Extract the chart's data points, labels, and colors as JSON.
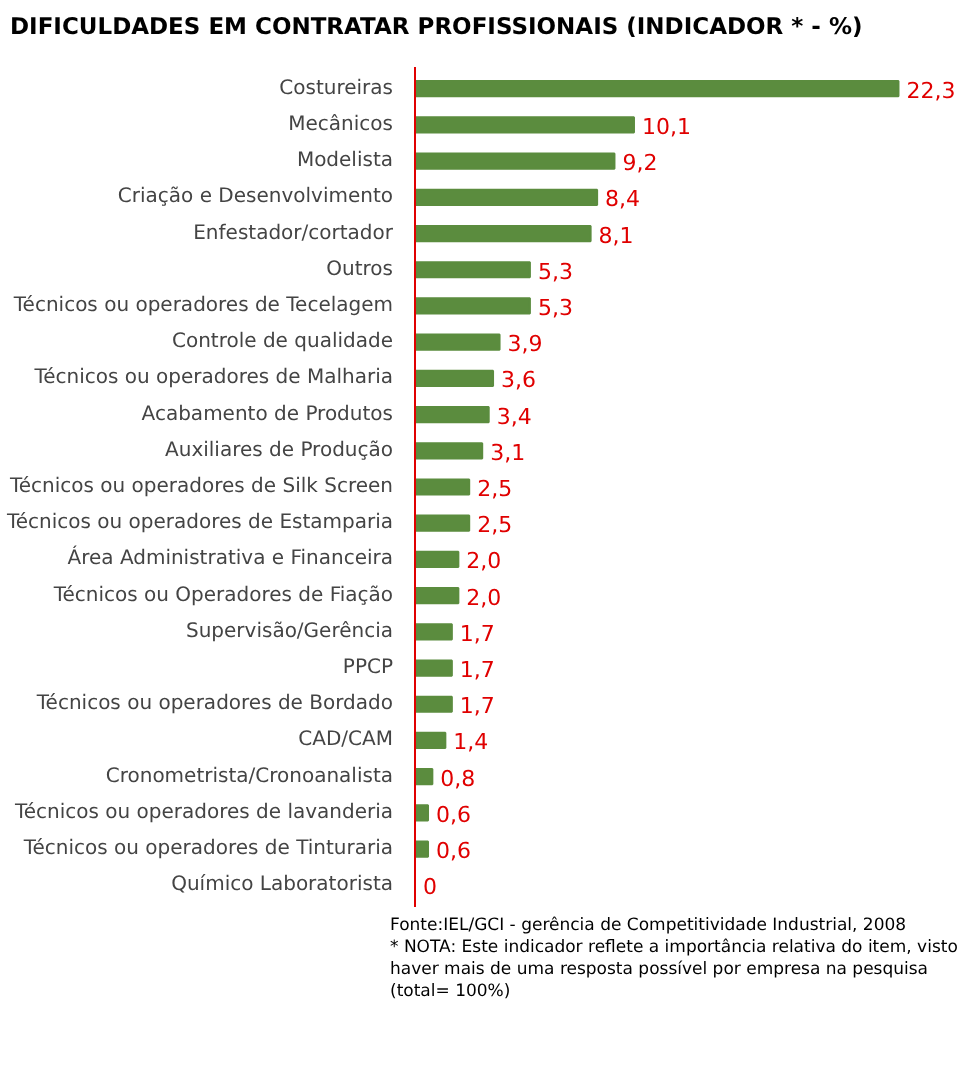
{
  "chart_data": {
    "type": "bar",
    "orientation": "horizontal",
    "title": "DIFICULDADES EM CONTRATAR PROFISSIONAIS (INDICADOR * - %)",
    "categories": [
      "Costureiras",
      "Mecânicos",
      "Modelista",
      "Criação e Desenvolvimento",
      "Enfestador/cortador",
      "Outros",
      "Técnicos ou operadores de Tecelagem",
      "Controle de qualidade",
      "Técnicos ou operadores de Malharia",
      "Acabamento de Produtos",
      "Auxiliares de Produção",
      "Técnicos ou operadores de Silk Screen",
      "Técnicos ou operadores de Estamparia",
      "Área Administrativa e Financeira",
      "Técnicos ou Operadores de Fiação",
      "Supervisão/Gerência",
      "PPCP",
      "Técnicos ou operadores de Bordado",
      "CAD/CAM",
      "Cronometrista/Cronoanalista",
      "Técnicos ou operadores de lavanderia",
      "Técnicos ou operadores de Tinturaria",
      "Químico Laboratorista"
    ],
    "values": [
      22.3,
      10.1,
      9.2,
      8.4,
      8.1,
      5.3,
      5.3,
      3.9,
      3.6,
      3.4,
      3.1,
      2.5,
      2.5,
      2.0,
      2.0,
      1.7,
      1.7,
      1.7,
      1.4,
      0.8,
      0.6,
      0.6,
      0
    ],
    "value_labels": [
      "22,3",
      "10,1",
      "9,2",
      "8,4",
      "8,1",
      "5,3",
      "5,3",
      "3,9",
      "3,6",
      "3,4",
      "3,1",
      "2,5",
      "2,5",
      "2,0",
      "2,0",
      "1,7",
      "1,7",
      "1,7",
      "1,4",
      "0,8",
      "0,6",
      "0,6",
      "0"
    ],
    "color": "#5b8c3e",
    "annotations": [
      "Fonte:IEL/GCI - gerência de Competitividade Industrial, 2008",
      "* NOTA: Este indicador reflete a importância relativa do item, visto haver mais de uma resposta possível por empresa na pesquisa (total= 100%)"
    ],
    "grid": false
  }
}
